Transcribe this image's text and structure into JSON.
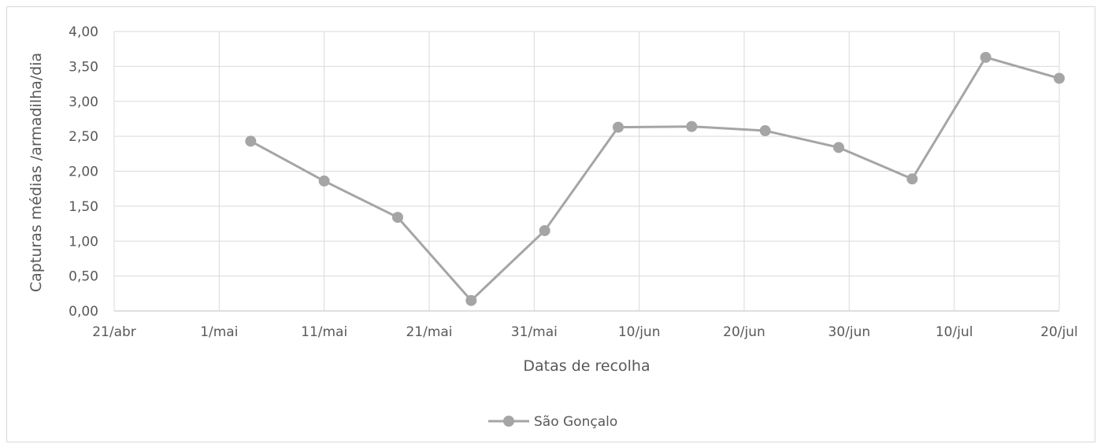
{
  "chart_data": {
    "type": "line",
    "title": "",
    "xlabel": "Datas de recolha",
    "ylabel": "Capturas médias /armadilha/dia",
    "x_tick_labels": [
      "21/abr",
      "1/mai",
      "11/mai",
      "21/mai",
      "31/mai",
      "10/jun",
      "20/jun",
      "30/jun",
      "10/jul",
      "20/jul"
    ],
    "x_range": [
      "2024-04-21",
      "2024-07-20"
    ],
    "y_tick_labels": [
      "0,00",
      "0,50",
      "1,00",
      "1,50",
      "2,00",
      "2,50",
      "3,00",
      "3,50",
      "4,00"
    ],
    "ylim": [
      0,
      4
    ],
    "grid": true,
    "legend_position": "bottom",
    "series": [
      {
        "name": "São Gonçalo",
        "color": "#a5a5a5",
        "points": [
          {
            "x": "2024-05-04",
            "y": 2.43
          },
          {
            "x": "2024-05-11",
            "y": 1.86
          },
          {
            "x": "2024-05-18",
            "y": 1.34
          },
          {
            "x": "2024-05-25",
            "y": 0.15
          },
          {
            "x": "2024-06-01",
            "y": 1.15
          },
          {
            "x": "2024-06-08",
            "y": 2.63
          },
          {
            "x": "2024-06-15",
            "y": 2.64
          },
          {
            "x": "2024-06-22",
            "y": 2.58
          },
          {
            "x": "2024-06-29",
            "y": 2.34
          },
          {
            "x": "2024-07-06",
            "y": 1.89
          },
          {
            "x": "2024-07-13",
            "y": 3.63
          },
          {
            "x": "2024-07-20",
            "y": 3.33
          }
        ]
      }
    ]
  }
}
